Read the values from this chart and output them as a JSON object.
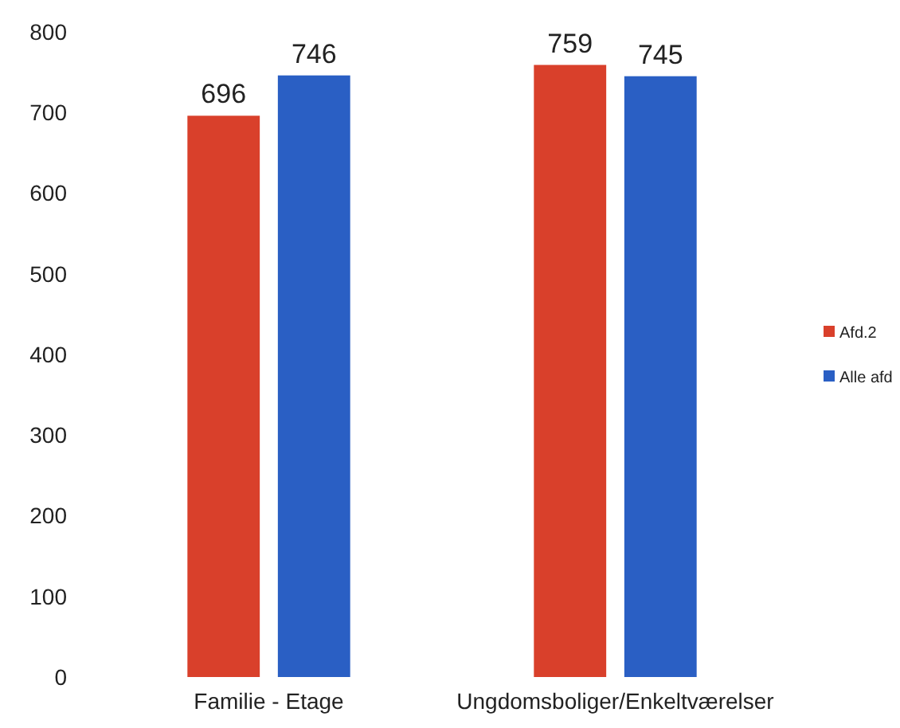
{
  "chart_data": {
    "type": "bar",
    "categories": [
      "Familie - Etage",
      "Ungdomsboliger/Enkeltværelser"
    ],
    "series": [
      {
        "name": "Afd.2",
        "color": "#d9402b",
        "values": [
          696,
          759
        ]
      },
      {
        "name": "Alle afd",
        "color": "#2a5fc4",
        "values": [
          746,
          745
        ]
      }
    ],
    "ylim": [
      0,
      800
    ],
    "yticks": [
      0,
      100,
      200,
      300,
      400,
      500,
      600,
      700,
      800
    ],
    "grid": false,
    "data_labels": true,
    "legend": "right"
  }
}
